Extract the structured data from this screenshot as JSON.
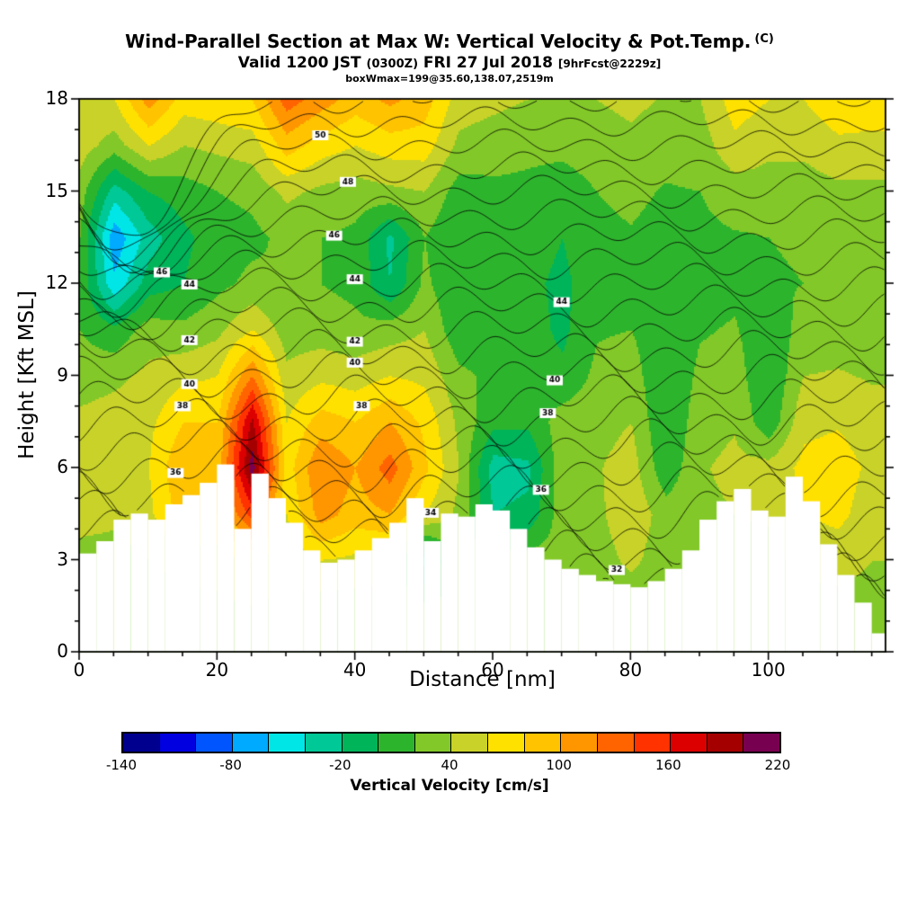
{
  "header": {
    "title": "Wind-Parallel Section at Max W: Vertical Velocity & Pot.Temp.",
    "title_unit": "(C)",
    "valid_pre": "Valid 1200 JST ",
    "valid_small": "(0300Z)",
    "valid_mid": " FRI 27 Jul 2018 ",
    "valid_tag": "[9hrFcst@2229z]",
    "boxw": "boxWmax=199@35.60,138.07,2519m"
  },
  "axes": {
    "x_label": "Distance [nm]",
    "y_label": "Height [Kft MSL]",
    "x_ticks": [
      0,
      20,
      40,
      60,
      80,
      100
    ],
    "x_minor_step": 5,
    "x_max": 117,
    "y_ticks": [
      0,
      3,
      6,
      9,
      12,
      15,
      18
    ],
    "y_minor_step": 1,
    "y_max": 18
  },
  "colorbar": {
    "caption": "Vertical Velocity [cm/s]",
    "min": -140,
    "max": 220,
    "step": 20,
    "tick_labels": [
      -140,
      -80,
      -20,
      40,
      100,
      160,
      220
    ],
    "colors": [
      "#00008F",
      "#0000E1",
      "#0055FF",
      "#00AAFF",
      "#00E6E6",
      "#00C896",
      "#00B45A",
      "#2DB42D",
      "#82C828",
      "#C8D228",
      "#FFE100",
      "#FFC300",
      "#FF9600",
      "#FF6400",
      "#FF3200",
      "#DC0000",
      "#A50000",
      "#780050"
    ]
  },
  "chart_data": {
    "type": "heatmap",
    "title": "Wind-Parallel Section at Max W: Vertical Velocity & Pot.Temp. (C)",
    "subtitle": "Valid 1200 JST (0300Z) FRI 27 Jul 2018 [9hrFcst@2229z]",
    "annotation": "boxWmax=199@35.60,138.07,2519m",
    "xlabel": "Distance [nm]",
    "ylabel": "Height [Kft MSL]",
    "xlim": [
      0,
      117
    ],
    "ylim": [
      0,
      18
    ],
    "fill_field": "vertical_velocity_cm_s",
    "fill_range": [
      -140,
      220
    ],
    "grid": {
      "x_step": 5,
      "z_step": 1.5,
      "values": [
        [
          25,
          25,
          30,
          50,
          60,
          45,
          30,
          20,
          15,
          20,
          30,
          50,
          60
        ],
        [
          25,
          25,
          30,
          45,
          55,
          50,
          35,
          5,
          -55,
          -75,
          -30,
          30,
          60
        ],
        [
          25,
          30,
          40,
          55,
          60,
          55,
          45,
          30,
          -10,
          -30,
          0,
          60,
          110
        ],
        [
          30,
          35,
          45,
          90,
          100,
          80,
          55,
          25,
          0,
          -5,
          10,
          40,
          70
        ],
        [
          30,
          35,
          50,
          80,
          90,
          80,
          60,
          35,
          15,
          10,
          20,
          45,
          75
        ],
        [
          30,
          40,
          60,
          150,
          210,
          185,
          120,
          60,
          25,
          15,
          25,
          50,
          80
        ],
        [
          30,
          35,
          45,
          60,
          70,
          60,
          45,
          30,
          20,
          25,
          45,
          90,
          130
        ],
        [
          25,
          30,
          60,
          110,
          120,
          90,
          55,
          30,
          20,
          20,
          35,
          70,
          110
        ],
        [
          25,
          30,
          55,
          90,
          100,
          80,
          50,
          25,
          15,
          15,
          30,
          60,
          90
        ],
        [
          25,
          30,
          50,
          100,
          130,
          100,
          60,
          30,
          -20,
          -25,
          35,
          70,
          105
        ],
        [
          20,
          25,
          -30,
          60,
          85,
          75,
          55,
          40,
          25,
          20,
          40,
          70,
          90
        ],
        [
          20,
          25,
          30,
          35,
          40,
          35,
          25,
          5,
          0,
          0,
          10,
          35,
          50
        ],
        [
          20,
          25,
          30,
          -20,
          -30,
          5,
          15,
          10,
          5,
          10,
          15,
          30,
          45
        ],
        [
          20,
          25,
          30,
          -15,
          -25,
          5,
          12,
          10,
          5,
          10,
          15,
          25,
          40
        ],
        [
          20,
          22,
          28,
          32,
          35,
          30,
          5,
          -5,
          -5,
          0,
          10,
          25,
          35
        ],
        [
          22,
          25,
          30,
          35,
          38,
          32,
          25,
          18,
          12,
          15,
          20,
          30,
          40
        ],
        [
          22,
          25,
          45,
          55,
          50,
          40,
          30,
          20,
          15,
          18,
          25,
          35,
          45
        ],
        [
          20,
          22,
          28,
          30,
          5,
          0,
          0,
          5,
          8,
          12,
          18,
          28,
          38
        ],
        [
          22,
          25,
          30,
          35,
          38,
          32,
          25,
          18,
          12,
          15,
          20,
          30,
          40
        ],
        [
          25,
          28,
          35,
          40,
          45,
          38,
          30,
          22,
          15,
          18,
          30,
          55,
          70
        ],
        [
          25,
          28,
          35,
          42,
          48,
          5,
          0,
          5,
          18,
          20,
          30,
          45,
          60
        ],
        [
          28,
          32,
          45,
          60,
          65,
          55,
          40,
          28,
          20,
          22,
          30,
          45,
          60
        ],
        [
          28,
          32,
          50,
          65,
          70,
          58,
          42,
          30,
          22,
          25,
          35,
          55,
          75
        ],
        [
          25,
          30,
          40,
          50,
          55,
          48,
          38,
          28,
          22,
          25,
          35,
          55,
          70
        ]
      ]
    },
    "terrain": {
      "step": 2.5,
      "h": [
        3.2,
        3.6,
        4.3,
        4.5,
        4.3,
        4.8,
        5.1,
        5.5,
        6.1,
        4.0,
        5.8,
        5.0,
        4.2,
        3.3,
        2.9,
        3.0,
        3.3,
        3.7,
        4.2,
        5.0,
        3.6,
        4.5,
        4.4,
        4.8,
        4.6,
        4.0,
        3.4,
        3.0,
        2.7,
        2.5,
        2.3,
        2.2,
        2.1,
        2.3,
        2.7,
        3.3,
        4.3,
        4.9,
        5.3,
        4.6,
        4.4,
        5.7,
        4.9,
        3.5,
        2.5,
        1.6,
        0.6
      ]
    },
    "contours": {
      "field": "potential_temperature_C",
      "min": 30,
      "max": 52,
      "interval": 1,
      "labels": [
        [
          50,
          35
        ],
        [
          48,
          39
        ],
        [
          46,
          37
        ],
        [
          44,
          40
        ],
        [
          42,
          40
        ],
        [
          40,
          40
        ],
        [
          38,
          41
        ],
        [
          46,
          12
        ],
        [
          44,
          16
        ],
        [
          42,
          16
        ],
        [
          40,
          16
        ],
        [
          38,
          15
        ],
        [
          36,
          14
        ],
        [
          44,
          70
        ],
        [
          40,
          69
        ],
        [
          38,
          68
        ],
        [
          36,
          67
        ],
        [
          34,
          51
        ],
        [
          32,
          78
        ]
      ]
    }
  }
}
